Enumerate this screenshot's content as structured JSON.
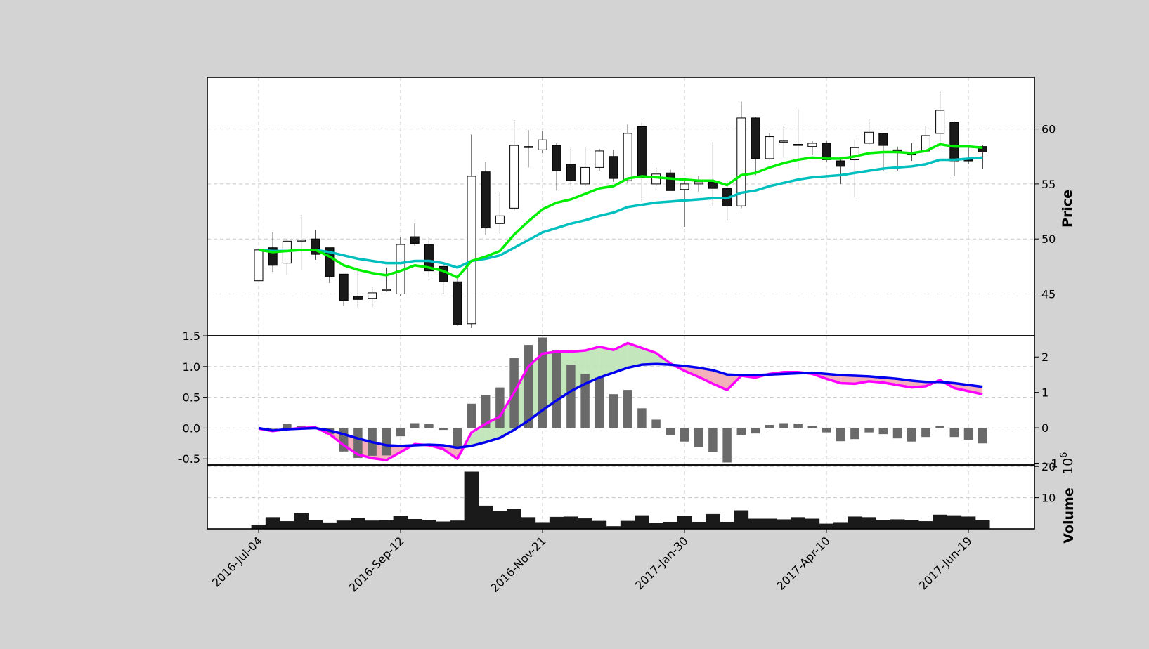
{
  "chart_data": {
    "type": "candlestick",
    "x_tick_labels": [
      "2016-Jul-04",
      "2016-Sep-12",
      "2016-Nov-21",
      "2017-Jan-30",
      "2017-Apr-10",
      "2017-Jun-19"
    ],
    "x_tick_index": [
      0,
      10,
      20,
      30,
      40,
      50
    ],
    "grid": true,
    "colors": {
      "up_body": "#ffffff",
      "down_body": "#1a1a1a",
      "edge": "#000000",
      "ma_fast": "#00ee00",
      "ma_slow": "#00bfbf",
      "macd": "#0000ee",
      "signal": "#ff00ff",
      "fill_pos": "#bde3b5",
      "fill_neg": "#f4a8b4",
      "hist": "#6a6a6a",
      "volume": "#1a1a1a",
      "background": "#d3d3d3",
      "plot_bg": "#ffffff"
    },
    "price_panel": {
      "ylabel": "Price",
      "ylim": [
        41.2,
        64.7
      ],
      "yticks": [
        45,
        50,
        55,
        60
      ],
      "candles": [
        [
          46.2,
          49.0,
          46.2,
          49.0
        ],
        [
          49.2,
          50.6,
          47.0,
          47.6
        ],
        [
          47.8,
          50.0,
          46.7,
          49.8
        ],
        [
          49.9,
          52.2,
          47.2,
          49.9
        ],
        [
          50.0,
          50.8,
          48.1,
          48.6
        ],
        [
          49.2,
          49.2,
          46.0,
          46.6
        ],
        [
          46.8,
          46.8,
          43.9,
          44.4
        ],
        [
          44.8,
          47.2,
          43.8,
          44.5
        ],
        [
          44.6,
          45.6,
          43.8,
          45.1
        ],
        [
          45.4,
          47.4,
          45.2,
          45.4
        ],
        [
          45.0,
          50.2,
          44.8,
          49.5
        ],
        [
          50.2,
          51.4,
          49.4,
          49.6
        ],
        [
          49.5,
          50.2,
          46.5,
          47.1
        ],
        [
          47.5,
          47.6,
          45.0,
          46.1
        ],
        [
          46.1,
          46.6,
          42.1,
          42.2
        ],
        [
          42.3,
          59.5,
          41.9,
          55.7
        ],
        [
          56.1,
          57.0,
          50.4,
          51.0
        ],
        [
          51.4,
          54.3,
          50.5,
          52.1
        ],
        [
          52.8,
          60.8,
          52.5,
          58.5
        ],
        [
          58.4,
          59.9,
          56.5,
          58.4
        ],
        [
          58.1,
          59.8,
          57.8,
          59.0
        ],
        [
          58.5,
          58.7,
          54.4,
          56.2
        ],
        [
          56.8,
          58.4,
          54.8,
          55.3
        ],
        [
          55.0,
          58.4,
          54.8,
          56.5
        ],
        [
          56.5,
          58.2,
          56.2,
          58.0
        ],
        [
          57.5,
          58.1,
          55.2,
          55.5
        ],
        [
          55.3,
          60.4,
          55.1,
          59.6
        ],
        [
          60.2,
          60.7,
          53.4,
          55.6
        ],
        [
          55.0,
          56.5,
          54.8,
          55.9
        ],
        [
          56.0,
          56.3,
          54.5,
          54.4
        ],
        [
          54.5,
          55.4,
          51.1,
          55.0
        ],
        [
          55.0,
          55.7,
          54.3,
          55.2
        ],
        [
          55.2,
          58.8,
          53.0,
          54.6
        ],
        [
          54.6,
          55.3,
          51.6,
          53.0
        ],
        [
          53.0,
          62.5,
          52.8,
          61.0
        ],
        [
          61.0,
          61.1,
          55.8,
          57.3
        ],
        [
          57.3,
          59.6,
          57.2,
          59.3
        ],
        [
          58.9,
          60.3,
          57.4,
          58.9
        ],
        [
          58.5,
          61.8,
          56.3,
          58.6
        ],
        [
          58.4,
          58.9,
          57.6,
          58.7
        ],
        [
          58.7,
          58.9,
          57.0,
          57.2
        ],
        [
          57.1,
          57.3,
          55.0,
          56.6
        ],
        [
          57.2,
          59.0,
          53.8,
          58.3
        ],
        [
          58.7,
          60.9,
          58.5,
          59.7
        ],
        [
          59.6,
          59.6,
          56.2,
          58.5
        ],
        [
          58.1,
          58.4,
          56.2,
          57.9
        ],
        [
          57.9,
          58.7,
          57.1,
          57.7
        ],
        [
          58.0,
          60.2,
          57.8,
          59.4
        ],
        [
          59.6,
          63.4,
          58.3,
          61.7
        ],
        [
          60.6,
          60.7,
          55.7,
          57.1
        ],
        [
          57.2,
          58.5,
          56.8,
          57.1
        ],
        [
          58.4,
          58.5,
          56.4,
          57.9
        ]
      ],
      "ma_fast": [
        49.0,
        48.8,
        48.9,
        49.0,
        49.0,
        48.4,
        47.6,
        47.2,
        46.9,
        46.7,
        47.1,
        47.6,
        47.4,
        47.1,
        46.5,
        48.0,
        48.4,
        48.9,
        50.4,
        51.6,
        52.7,
        53.3,
        53.6,
        54.1,
        54.6,
        54.8,
        55.5,
        55.7,
        55.6,
        55.5,
        55.4,
        55.3,
        55.3,
        54.9,
        55.8,
        56.0,
        56.5,
        56.9,
        57.2,
        57.4,
        57.3,
        57.3,
        57.5,
        57.8,
        57.9,
        57.9,
        57.8,
        58.0,
        58.6,
        58.4,
        58.4,
        58.3
      ],
      "ma_slow": [
        49.0,
        48.9,
        48.9,
        49.0,
        49.0,
        48.8,
        48.5,
        48.2,
        48.0,
        47.8,
        47.8,
        48.0,
        48.0,
        47.8,
        47.4,
        48.0,
        48.2,
        48.5,
        49.2,
        49.9,
        50.6,
        51.0,
        51.4,
        51.7,
        52.1,
        52.4,
        52.9,
        53.1,
        53.3,
        53.4,
        53.5,
        53.6,
        53.7,
        53.7,
        54.2,
        54.4,
        54.8,
        55.1,
        55.4,
        55.6,
        55.7,
        55.8,
        56.0,
        56.2,
        56.4,
        56.5,
        56.6,
        56.8,
        57.2,
        57.2,
        57.3,
        57.4
      ]
    },
    "macd_panel": {
      "ylim_left": [
        -0.6,
        1.5
      ],
      "yticks_left": [
        -0.5,
        0.0,
        0.5,
        1.0,
        1.5
      ],
      "ylim_right": [
        -1.05,
        2.6
      ],
      "yticks_right": [
        -1,
        0,
        1,
        2
      ],
      "macd": [
        0.0,
        -0.04,
        -0.02,
        -0.01,
        0.0,
        -0.04,
        -0.1,
        -0.17,
        -0.23,
        -0.28,
        -0.29,
        -0.28,
        -0.27,
        -0.28,
        -0.32,
        -0.29,
        -0.23,
        -0.16,
        -0.03,
        0.12,
        0.29,
        0.45,
        0.6,
        0.72,
        0.82,
        0.9,
        0.98,
        1.03,
        1.04,
        1.03,
        1.01,
        0.98,
        0.94,
        0.87,
        0.86,
        0.86,
        0.87,
        0.88,
        0.89,
        0.9,
        0.88,
        0.86,
        0.85,
        0.84,
        0.82,
        0.8,
        0.77,
        0.75,
        0.75,
        0.73,
        0.7,
        0.67
      ],
      "signal": [
        -0.01,
        -0.05,
        -0.02,
        0.0,
        0.01,
        -0.1,
        -0.28,
        -0.43,
        -0.49,
        -0.52,
        -0.39,
        -0.26,
        -0.28,
        -0.34,
        -0.5,
        -0.07,
        0.07,
        0.19,
        0.58,
        1.0,
        1.21,
        1.24,
        1.24,
        1.26,
        1.32,
        1.27,
        1.38,
        1.3,
        1.22,
        1.05,
        0.93,
        0.83,
        0.72,
        0.62,
        0.85,
        0.82,
        0.88,
        0.91,
        0.91,
        0.88,
        0.8,
        0.73,
        0.72,
        0.76,
        0.74,
        0.7,
        0.66,
        0.68,
        0.78,
        0.65,
        0.6,
        0.55
      ],
      "histogram": [
        -0.02,
        -0.03,
        0.1,
        0.05,
        -0.03,
        -0.18,
        -0.67,
        -0.85,
        -0.79,
        -0.78,
        -0.24,
        0.13,
        0.1,
        -0.06,
        -0.58,
        0.68,
        0.93,
        1.14,
        1.97,
        2.34,
        2.55,
        2.2,
        1.78,
        1.52,
        1.42,
        0.95,
        1.07,
        0.55,
        0.23,
        -0.2,
        -0.39,
        -0.55,
        -0.68,
        -0.98,
        -0.2,
        -0.16,
        0.08,
        0.13,
        0.12,
        0.06,
        -0.13,
        -0.38,
        -0.32,
        -0.13,
        -0.18,
        -0.3,
        -0.39,
        -0.26,
        0.05,
        -0.26,
        -0.34,
        -0.44
      ]
    },
    "volume_panel": {
      "ylabel": "Volume",
      "exponent_label": "1e6",
      "ylim": [
        0,
        20.5
      ],
      "yticks": [
        10,
        20
      ],
      "values": [
        1.3,
        3.7,
        2.4,
        5.1,
        2.7,
        2.0,
        2.6,
        3.5,
        2.6,
        2.7,
        4.1,
        3.1,
        2.8,
        2.3,
        2.6,
        18.3,
        7.4,
        5.8,
        6.4,
        3.7,
        2.1,
        3.8,
        3.9,
        3.3,
        2.5,
        0.8,
        2.5,
        4.3,
        1.9,
        2.2,
        4.1,
        2.2,
        4.7,
        2.2,
        5.9,
        3.2,
        3.2,
        3.0,
        3.7,
        3.2,
        1.6,
        2.1,
        3.9,
        3.7,
        2.8,
        3.0,
        2.8,
        2.4,
        4.5,
        4.3,
        3.9,
        2.7
      ]
    }
  }
}
